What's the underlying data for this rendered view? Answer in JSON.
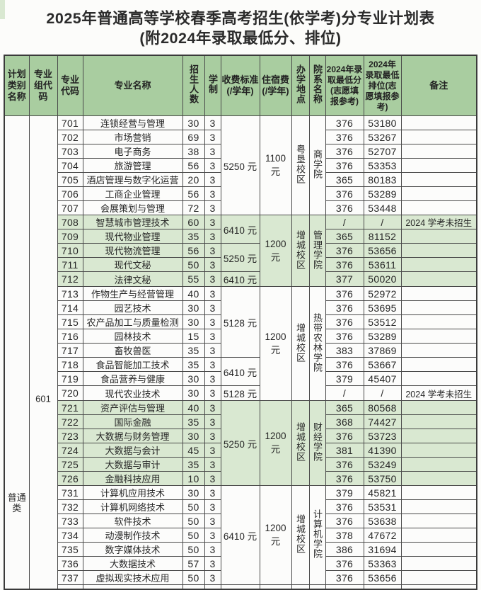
{
  "title": {
    "line1": "2025年普通高等学校春季高考招生(依学考)分专业计划表",
    "line2": "(附2024年录取最低分、排位)"
  },
  "colors": {
    "header_green": "#a9cda0",
    "tint_green": "#d9e8d1",
    "border_dark": "#3a3a3a"
  },
  "table": {
    "headers": {
      "plan_category": "计划类别名称",
      "group_code": "专业组代码",
      "major_code": "专业代码",
      "major_name": "专业名称",
      "enrollment": "招生人数",
      "duration": "学制",
      "tuition": "收费标准(/学年)",
      "accommodation": "住宿费(/学年)",
      "campus": "办学地点",
      "college": "院系名称",
      "min_score": "2024年录取最低分(志愿填报参考)",
      "min_rank": "2024年录取最低排位(志愿填报参考)",
      "remark": "备注"
    },
    "plan_category": "普通类",
    "group_code": "601",
    "section_tints": [
      false,
      true,
      false,
      true,
      false
    ],
    "rows": [
      {
        "sec": 0,
        "code": "701",
        "name": "连锁经营与管理",
        "enroll": "30",
        "dur": "3",
        "tuition": {
          "v": "5250 元",
          "span": 7
        },
        "accom": {
          "v": "1100 元",
          "span": 7
        },
        "campus": {
          "v": "粤垦校区",
          "span": 7
        },
        "college": {
          "v": "商学院",
          "span": 7
        },
        "score": "376",
        "rank": "53180",
        "remark": ""
      },
      {
        "sec": 0,
        "code": "702",
        "name": "市场营销",
        "enroll": "69",
        "dur": "3",
        "score": "376",
        "rank": "53267",
        "remark": ""
      },
      {
        "sec": 0,
        "code": "703",
        "name": "电子商务",
        "enroll": "38",
        "dur": "3",
        "score": "376",
        "rank": "52707",
        "remark": ""
      },
      {
        "sec": 0,
        "code": "704",
        "name": "旅游管理",
        "enroll": "56",
        "dur": "3",
        "score": "376",
        "rank": "53353",
        "remark": ""
      },
      {
        "sec": 0,
        "code": "705",
        "name": "酒店管理与数字化运营",
        "enroll": "20",
        "dur": "3",
        "score": "365",
        "rank": "80183",
        "remark": ""
      },
      {
        "sec": 0,
        "code": "706",
        "name": "工商企业管理",
        "enroll": "56",
        "dur": "3",
        "score": "376",
        "rank": "53289",
        "remark": ""
      },
      {
        "sec": 0,
        "code": "707",
        "name": "会展策划与管理",
        "enroll": "72",
        "dur": "3",
        "score": "376",
        "rank": "53448",
        "remark": ""
      },
      {
        "sec": 1,
        "code": "708",
        "name": "智慧城市管理技术",
        "enroll": "60",
        "dur": "3",
        "tuition": {
          "v": "6410 元",
          "span": 2
        },
        "accom": {
          "v": "1200 元",
          "span": 5
        },
        "campus": {
          "v": "增城校区",
          "span": 5
        },
        "college": {
          "v": "管理学院",
          "span": 5
        },
        "score": "/",
        "rank": "/",
        "remark": "2024 学考未招生"
      },
      {
        "sec": 1,
        "code": "709",
        "name": "现代物业管理",
        "enroll": "35",
        "dur": "3",
        "score": "365",
        "rank": "81152",
        "remark": ""
      },
      {
        "sec": 1,
        "code": "710",
        "name": "现代物流管理",
        "enroll": "56",
        "dur": "3",
        "tuition": {
          "v": "5250 元",
          "span": 2
        },
        "score": "376",
        "rank": "53656",
        "remark": ""
      },
      {
        "sec": 1,
        "code": "711",
        "name": "现代文秘",
        "enroll": "50",
        "dur": "3",
        "score": "376",
        "rank": "53611",
        "remark": ""
      },
      {
        "sec": 1,
        "code": "712",
        "name": "法律文秘",
        "enroll": "55",
        "dur": "3",
        "tuition": {
          "v": "6410 元",
          "span": 1
        },
        "score": "377",
        "rank": "50020",
        "remark": ""
      },
      {
        "sec": 2,
        "code": "713",
        "name": "作物生产与经营管理",
        "enroll": "40",
        "dur": "3",
        "tuition": {
          "v": "5128 元",
          "span": 5
        },
        "accom": {
          "v": "1200 元",
          "span": 8
        },
        "campus": {
          "v": "增城校区",
          "span": 8
        },
        "college": {
          "v": "热带农林学院",
          "span": 8
        },
        "score": "376",
        "rank": "52972",
        "remark": ""
      },
      {
        "sec": 2,
        "code": "714",
        "name": "园艺技术",
        "enroll": "30",
        "dur": "3",
        "score": "376",
        "rank": "53695",
        "remark": ""
      },
      {
        "sec": 2,
        "code": "715",
        "name": "农产品加工与质量检测",
        "enroll": "30",
        "dur": "3",
        "score": "376",
        "rank": "53512",
        "remark": ""
      },
      {
        "sec": 2,
        "code": "716",
        "name": "园林技术",
        "enroll": "15",
        "dur": "3",
        "score": "376",
        "rank": "53289",
        "remark": ""
      },
      {
        "sec": 2,
        "code": "717",
        "name": "畜牧兽医",
        "enroll": "35",
        "dur": "3",
        "score": "383",
        "rank": "37869",
        "remark": ""
      },
      {
        "sec": 2,
        "code": "718",
        "name": "食品智能加工技术",
        "enroll": "35",
        "dur": "3",
        "tuition": {
          "v": "6410 元",
          "span": 2
        },
        "score": "376",
        "rank": "53667",
        "remark": ""
      },
      {
        "sec": 2,
        "code": "719",
        "name": "食品营养与健康",
        "enroll": "30",
        "dur": "3",
        "score": "379",
        "rank": "45407",
        "remark": ""
      },
      {
        "sec": 2,
        "code": "720",
        "name": "现代农业技术",
        "enroll": "30",
        "dur": "3",
        "tuition": {
          "v": "5128 元",
          "span": 1
        },
        "score": "/",
        "rank": "/",
        "remark": "2024 学考未招生"
      },
      {
        "sec": 3,
        "code": "721",
        "name": "资产评估与管理",
        "enroll": "40",
        "dur": "3",
        "tuition": {
          "v": "5250 元",
          "span": 6
        },
        "accom": {
          "v": "1200 元",
          "span": 6
        },
        "campus": {
          "v": "增城校区",
          "span": 6
        },
        "college": {
          "v": "财经学院",
          "span": 6
        },
        "score": "365",
        "rank": "80568",
        "remark": ""
      },
      {
        "sec": 3,
        "code": "722",
        "name": "国际金融",
        "enroll": "35",
        "dur": "3",
        "score": "368",
        "rank": "74427",
        "remark": ""
      },
      {
        "sec": 3,
        "code": "723",
        "name": "大数据与财务管理",
        "enroll": "30",
        "dur": "3",
        "score": "376",
        "rank": "53723",
        "remark": ""
      },
      {
        "sec": 3,
        "code": "724",
        "name": "大数据与会计",
        "enroll": "45",
        "dur": "3",
        "score": "381",
        "rank": "41390",
        "remark": ""
      },
      {
        "sec": 3,
        "code": "725",
        "name": "大数据与审计",
        "enroll": "35",
        "dur": "3",
        "score": "376",
        "rank": "53249",
        "remark": ""
      },
      {
        "sec": 3,
        "code": "726",
        "name": "金融科技应用",
        "enroll": "10",
        "dur": "3",
        "score": "376",
        "rank": "53750",
        "remark": ""
      },
      {
        "sec": 4,
        "code": "731",
        "name": "计算机应用技术",
        "enroll": "30",
        "dur": "3",
        "tuition": {
          "v": "6410 元",
          "span": 7
        },
        "accom": {
          "v": "1200 元",
          "span": 7
        },
        "campus": {
          "v": "增城校区",
          "span": 7
        },
        "college": {
          "v": "计算机学院",
          "span": 7
        },
        "score": "379",
        "rank": "45821",
        "remark": ""
      },
      {
        "sec": 4,
        "code": "732",
        "name": "计算机网络技术",
        "enroll": "50",
        "dur": "3",
        "score": "376",
        "rank": "53531",
        "remark": ""
      },
      {
        "sec": 4,
        "code": "733",
        "name": "软件技术",
        "enroll": "50",
        "dur": "3",
        "score": "376",
        "rank": "53638",
        "remark": ""
      },
      {
        "sec": 4,
        "code": "734",
        "name": "动漫制作技术",
        "enroll": "50",
        "dur": "3",
        "score": "378",
        "rank": "47672",
        "remark": ""
      },
      {
        "sec": 4,
        "code": "735",
        "name": "数字媒体技术",
        "enroll": "50",
        "dur": "3",
        "score": "386",
        "rank": "31694",
        "remark": ""
      },
      {
        "sec": 4,
        "code": "736",
        "name": "大数据技术",
        "enroll": "57",
        "dur": "3",
        "score": "376",
        "rank": "53363",
        "remark": ""
      },
      {
        "sec": 4,
        "code": "737",
        "name": "虚拟现实技术应用",
        "enroll": "50",
        "dur": "3",
        "score": "376",
        "rank": "53656",
        "remark": ""
      }
    ]
  }
}
